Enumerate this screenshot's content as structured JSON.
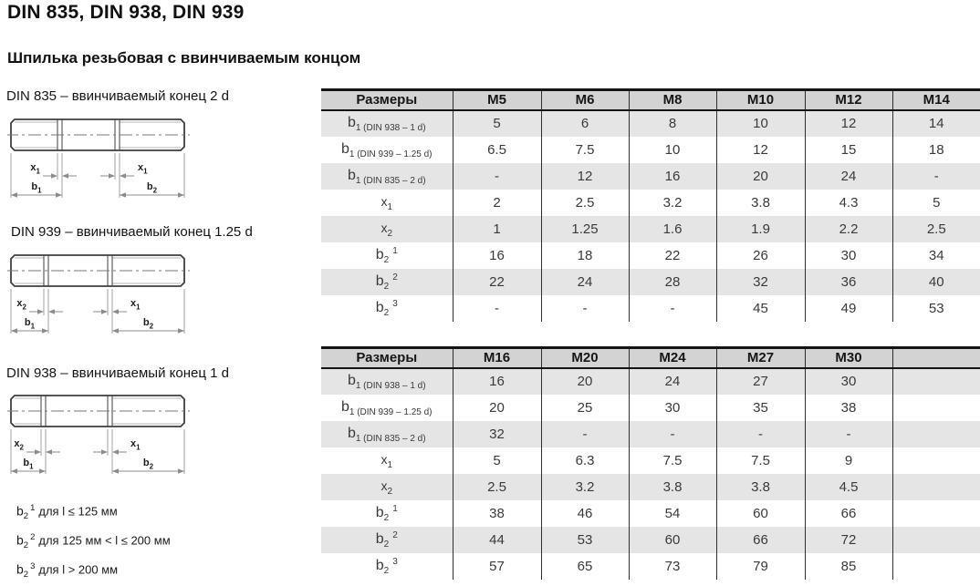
{
  "page": {
    "title": "DIN 835, DIN 938, DIN 939",
    "subtitle": "Шпилька резьбовая с ввинчиваемым концом"
  },
  "colors": {
    "header_bg": "#d3d3d3",
    "band_bg": "#e5e5e5",
    "border": "#141414",
    "cell_text": "#3a3a3a"
  },
  "drawings": [
    {
      "caption": "DIN 835 – ввинчиваемый конец 2 d",
      "labels": {
        "left_x": {
          "base": "x",
          "sub": "1"
        },
        "left_b": {
          "base": "b",
          "sub": "1"
        },
        "right_x": {
          "base": "x",
          "sub": "1"
        },
        "right_b": {
          "base": "b",
          "sub": "2"
        }
      }
    },
    {
      "caption": "DIN 939 – ввинчиваемый конец 1.25 d",
      "labels": {
        "left_x": {
          "base": "x",
          "sub": "2"
        },
        "left_b": {
          "base": "b",
          "sub": "1"
        },
        "right_x": {
          "base": "x",
          "sub": "1"
        },
        "right_b": {
          "base": "b",
          "sub": "2"
        }
      }
    },
    {
      "caption": "DIN 938 – ввинчиваемый конец 1 d",
      "labels": {
        "left_x": {
          "base": "x",
          "sub": "2"
        },
        "left_b": {
          "base": "b",
          "sub": "1"
        },
        "right_x": {
          "base": "x",
          "sub": "1"
        },
        "right_b": {
          "base": "b",
          "sub": "2"
        }
      }
    }
  ],
  "footnotes": [
    {
      "base": "b",
      "sub": "2",
      "sup": "1",
      "text": "для l ≤ 125 мм"
    },
    {
      "base": "b",
      "sub": "2",
      "sup": "2",
      "text": "для 125 мм < l ≤ 200 мм"
    },
    {
      "base": "b",
      "sub": "2",
      "sup": "3",
      "text": "для l > 200 мм"
    }
  ],
  "tables": [
    {
      "header_label": "Размеры",
      "columns": [
        "M5",
        "M6",
        "M8",
        "M10",
        "M12",
        "M14"
      ],
      "rows": [
        {
          "label": {
            "base": "b",
            "sub": "1 (DIN 938 – 1 d)",
            "sup": ""
          },
          "values": [
            "5",
            "6",
            "8",
            "10",
            "12",
            "14"
          ]
        },
        {
          "label": {
            "base": "b",
            "sub": "1 (DIN 939 – 1.25 d)",
            "sup": ""
          },
          "values": [
            "6.5",
            "7.5",
            "10",
            "12",
            "15",
            "18"
          ]
        },
        {
          "label": {
            "base": "b",
            "sub": "1 (DIN 835 – 2 d)",
            "sup": ""
          },
          "values": [
            "-",
            "12",
            "16",
            "20",
            "24",
            "-"
          ]
        },
        {
          "label": {
            "base": "x",
            "sub": "1",
            "sup": ""
          },
          "values": [
            "2",
            "2.5",
            "3.2",
            "3.8",
            "4.3",
            "5"
          ]
        },
        {
          "label": {
            "base": "x",
            "sub": "2",
            "sup": ""
          },
          "values": [
            "1",
            "1.25",
            "1.6",
            "1.9",
            "2.2",
            "2.5"
          ]
        },
        {
          "label": {
            "base": "b",
            "sub": "2",
            "sup": "1"
          },
          "values": [
            "16",
            "18",
            "22",
            "26",
            "30",
            "34"
          ]
        },
        {
          "label": {
            "base": "b",
            "sub": "2",
            "sup": "2"
          },
          "values": [
            "22",
            "24",
            "28",
            "32",
            "36",
            "40"
          ]
        },
        {
          "label": {
            "base": "b",
            "sub": "2",
            "sup": "3"
          },
          "values": [
            "-",
            "-",
            "-",
            "45",
            "49",
            "53"
          ]
        }
      ]
    },
    {
      "header_label": "Размеры",
      "columns": [
        "M16",
        "M20",
        "M24",
        "M27",
        "M30",
        ""
      ],
      "rows": [
        {
          "label": {
            "base": "b",
            "sub": "1 (DIN 938 – 1 d)",
            "sup": ""
          },
          "values": [
            "16",
            "20",
            "24",
            "27",
            "30",
            ""
          ]
        },
        {
          "label": {
            "base": "b",
            "sub": "1 (DIN 939 – 1.25 d)",
            "sup": ""
          },
          "values": [
            "20",
            "25",
            "30",
            "35",
            "38",
            ""
          ]
        },
        {
          "label": {
            "base": "b",
            "sub": "1 (DIN 835 – 2 d)",
            "sup": ""
          },
          "values": [
            "32",
            "-",
            "-",
            "-",
            "-",
            ""
          ]
        },
        {
          "label": {
            "base": "x",
            "sub": "1",
            "sup": ""
          },
          "values": [
            "5",
            "6.3",
            "7.5",
            "7.5",
            "9",
            ""
          ]
        },
        {
          "label": {
            "base": "x",
            "sub": "2",
            "sup": ""
          },
          "values": [
            "2.5",
            "3.2",
            "3.8",
            "3.8",
            "4.5",
            ""
          ]
        },
        {
          "label": {
            "base": "b",
            "sub": "2",
            "sup": "1"
          },
          "values": [
            "38",
            "46",
            "54",
            "60",
            "66",
            ""
          ]
        },
        {
          "label": {
            "base": "b",
            "sub": "2",
            "sup": "2"
          },
          "values": [
            "44",
            "53",
            "60",
            "66",
            "72",
            ""
          ]
        },
        {
          "label": {
            "base": "b",
            "sub": "2",
            "sup": "3"
          },
          "values": [
            "57",
            "65",
            "73",
            "79",
            "85",
            ""
          ]
        }
      ]
    }
  ]
}
